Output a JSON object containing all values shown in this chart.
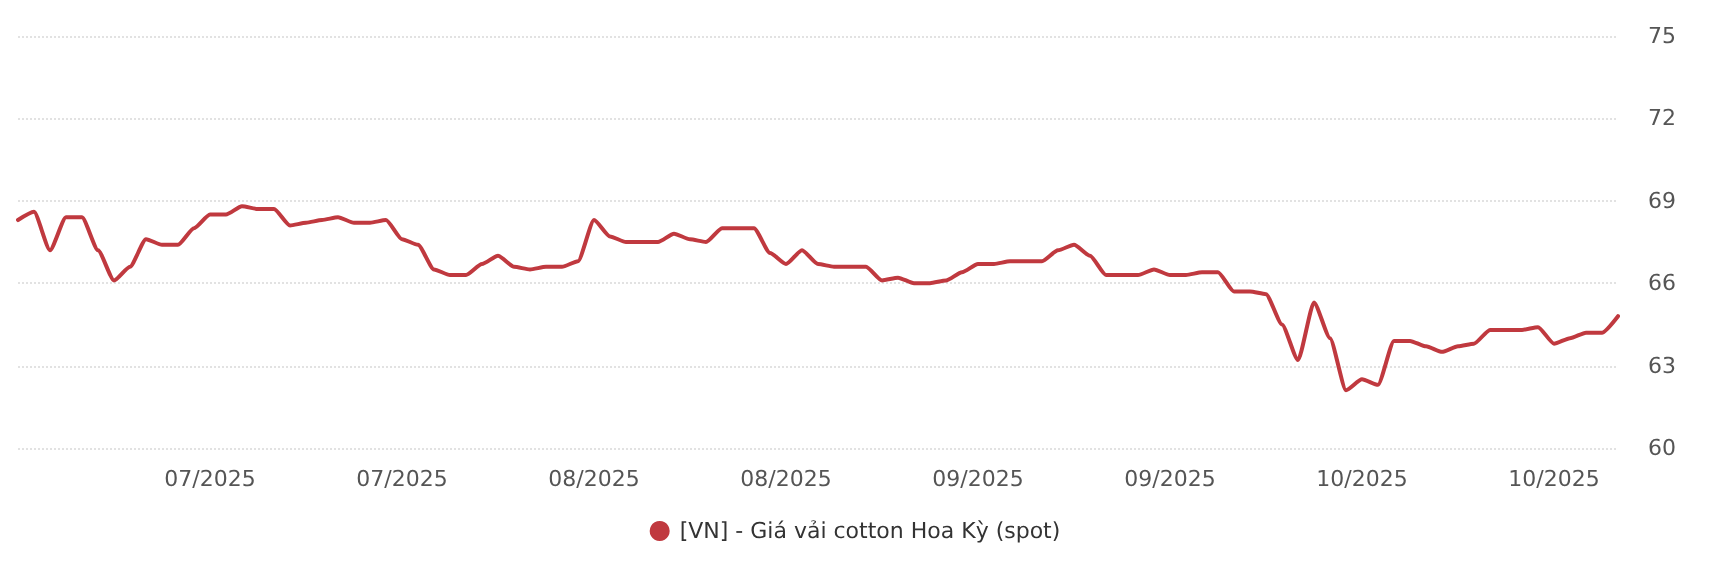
{
  "chart_data": {
    "type": "line",
    "categories": [
      null,
      null,
      null,
      null,
      null,
      null,
      null,
      null,
      null,
      null,
      null,
      null,
      "07/2025",
      null,
      null,
      null,
      null,
      null,
      null,
      null,
      null,
      null,
      null,
      null,
      "07/2025",
      null,
      null,
      null,
      null,
      null,
      null,
      null,
      null,
      null,
      null,
      null,
      "08/2025",
      null,
      null,
      null,
      null,
      null,
      null,
      null,
      null,
      null,
      null,
      null,
      "08/2025",
      null,
      null,
      null,
      null,
      null,
      null,
      null,
      null,
      null,
      null,
      null,
      "09/2025",
      null,
      null,
      null,
      null,
      null,
      null,
      null,
      null,
      null,
      null,
      null,
      "09/2025",
      null,
      null,
      null,
      null,
      null,
      null,
      null,
      null,
      null,
      null,
      null,
      "10/2025",
      null,
      null,
      null,
      null,
      null,
      null,
      null,
      null,
      null,
      null,
      null,
      "10/2025",
      null,
      null,
      null,
      null
    ],
    "series": [
      {
        "name": "[VN] - Giá vải cotton Hoa Kỳ (spot)",
        "color": "#c0393f",
        "values": [
          68.3,
          68.6,
          67.2,
          68.4,
          68.4,
          67.2,
          66.1,
          66.6,
          67.6,
          67.4,
          67.4,
          68.0,
          68.5,
          68.5,
          68.8,
          68.7,
          68.7,
          68.1,
          68.2,
          68.3,
          68.4,
          68.2,
          68.2,
          68.3,
          67.6,
          67.4,
          66.5,
          66.3,
          66.3,
          66.7,
          67.0,
          66.6,
          66.5,
          66.6,
          66.6,
          66.8,
          68.3,
          67.7,
          67.5,
          67.5,
          67.5,
          67.8,
          67.6,
          67.5,
          68.0,
          68.0,
          68.0,
          67.1,
          66.7,
          67.2,
          66.7,
          66.6,
          66.6,
          66.6,
          66.1,
          66.2,
          66.0,
          66.0,
          66.1,
          66.4,
          66.7,
          66.7,
          66.8,
          66.8,
          66.8,
          67.2,
          67.4,
          67.0,
          66.3,
          66.3,
          66.3,
          66.5,
          66.3,
          66.3,
          66.4,
          66.4,
          65.7,
          65.7,
          65.6,
          64.5,
          63.2,
          65.3,
          64.0,
          62.1,
          62.5,
          62.3,
          63.9,
          63.9,
          63.7,
          63.5,
          63.7,
          63.8,
          64.3,
          64.3,
          64.3,
          64.4,
          63.8,
          64.0,
          64.2,
          64.2,
          64.8
        ]
      }
    ],
    "ylim": [
      60,
      75
    ],
    "yticks": [
      60,
      63,
      66,
      69,
      72,
      75
    ],
    "grid": "y",
    "legend": "bottom",
    "marker": "none",
    "line_style": "solid"
  }
}
